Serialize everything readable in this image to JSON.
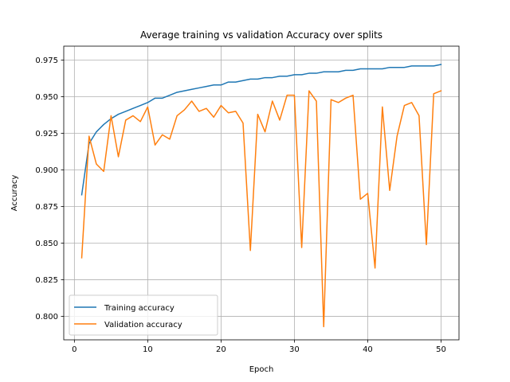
{
  "chart_data": {
    "type": "line",
    "title": "Average training vs validation Accuracy over splits",
    "xlabel": "Epoch",
    "ylabel": "Accuracy",
    "xlim": [
      -1.45,
      52.45
    ],
    "ylim": [
      0.784,
      0.9845
    ],
    "grid": true,
    "legend_position": "lower left",
    "x_ticks": [
      0,
      10,
      20,
      30,
      40,
      50
    ],
    "y_ticks": [
      0.8,
      0.825,
      0.85,
      0.875,
      0.9,
      0.925,
      0.95,
      0.975
    ],
    "x_tick_labels": [
      "0",
      "10",
      "20",
      "30",
      "40",
      "50"
    ],
    "y_tick_labels": [
      "0.800",
      "0.825",
      "0.850",
      "0.875",
      "0.900",
      "0.925",
      "0.950",
      "0.975"
    ],
    "x": [
      1,
      2,
      3,
      4,
      5,
      6,
      7,
      8,
      9,
      10,
      11,
      12,
      13,
      14,
      15,
      16,
      17,
      18,
      19,
      20,
      21,
      22,
      23,
      24,
      25,
      26,
      27,
      28,
      29,
      30,
      31,
      32,
      33,
      34,
      35,
      36,
      37,
      38,
      39,
      40,
      41,
      42,
      43,
      44,
      45,
      46,
      47,
      48,
      49,
      50
    ],
    "series": [
      {
        "name": "Training accuracy",
        "color": "#1f77b4",
        "values": [
          0.883,
          0.918,
          0.926,
          0.931,
          0.935,
          0.938,
          0.94,
          0.942,
          0.944,
          0.946,
          0.949,
          0.949,
          0.951,
          0.953,
          0.954,
          0.955,
          0.956,
          0.957,
          0.958,
          0.958,
          0.96,
          0.96,
          0.961,
          0.962,
          0.962,
          0.963,
          0.963,
          0.964,
          0.964,
          0.965,
          0.965,
          0.966,
          0.966,
          0.967,
          0.967,
          0.967,
          0.968,
          0.968,
          0.969,
          0.969,
          0.969,
          0.969,
          0.97,
          0.97,
          0.97,
          0.971,
          0.971,
          0.971,
          0.971,
          0.972
        ]
      },
      {
        "name": "Validation accuracy",
        "color": "#ff7f0e",
        "values": [
          0.84,
          0.923,
          0.904,
          0.899,
          0.937,
          0.909,
          0.934,
          0.937,
          0.933,
          0.943,
          0.917,
          0.924,
          0.921,
          0.937,
          0.941,
          0.947,
          0.94,
          0.942,
          0.936,
          0.944,
          0.939,
          0.94,
          0.932,
          0.845,
          0.938,
          0.926,
          0.947,
          0.934,
          0.951,
          0.951,
          0.847,
          0.954,
          0.947,
          0.793,
          0.948,
          0.946,
          0.949,
          0.951,
          0.88,
          0.884,
          0.833,
          0.943,
          0.886,
          0.923,
          0.944,
          0.946,
          0.937,
          0.849,
          0.952,
          0.954
        ]
      }
    ]
  }
}
